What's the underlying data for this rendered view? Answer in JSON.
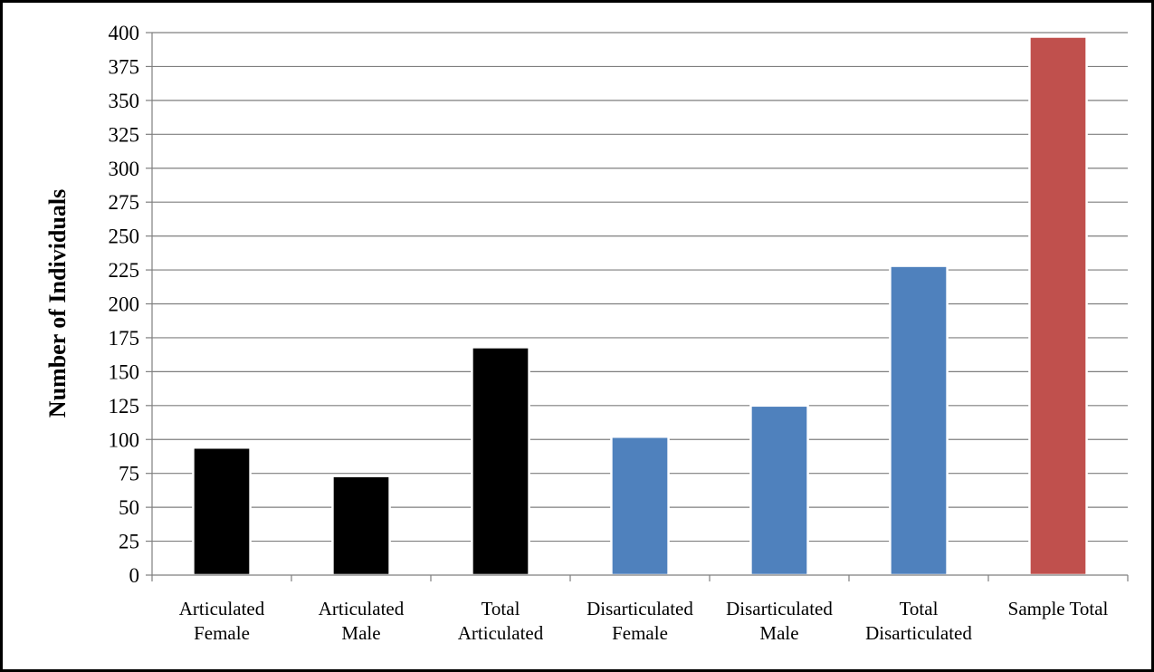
{
  "chart_data": {
    "type": "bar",
    "categories": [
      [
        "Articulated",
        "Female"
      ],
      [
        "Articulated",
        "Male"
      ],
      [
        "Total",
        "Articulated"
      ],
      [
        "Disarticulated",
        "Female"
      ],
      [
        "Disarticulated",
        "Male"
      ],
      [
        "Total",
        "Disarticulated"
      ],
      [
        "Sample Total"
      ]
    ],
    "values": [
      94,
      73,
      168,
      102,
      125,
      228,
      397
    ],
    "bar_colors": [
      "#000000",
      "#000000",
      "#000000",
      "#4f81bd",
      "#4f81bd",
      "#4f81bd",
      "#c0504d"
    ],
    "title": "",
    "xlabel": "",
    "ylabel": "Number of Individuals",
    "ylim": [
      0,
      400
    ],
    "yticks": [
      0,
      25,
      50,
      75,
      100,
      125,
      150,
      175,
      200,
      225,
      250,
      275,
      300,
      325,
      350,
      375,
      400
    ],
    "grid": true,
    "legend": "none"
  }
}
